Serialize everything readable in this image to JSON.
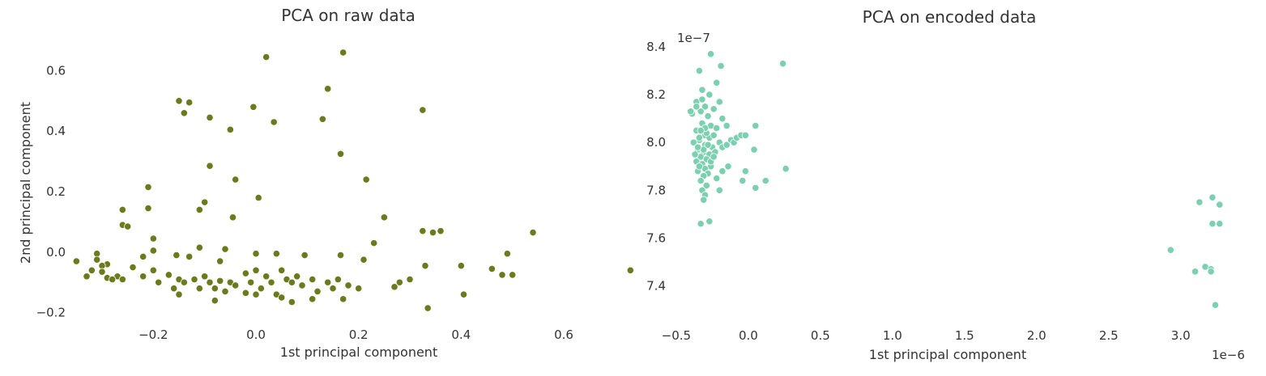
{
  "chart_data": [
    {
      "type": "scatter",
      "title": "PCA on raw data",
      "xlabel": "1st principal component",
      "ylabel": "2nd principal component",
      "xlim": [
        -0.36,
        0.72
      ],
      "ylim": [
        -0.225,
        0.7
      ],
      "xticks": [
        -0.2,
        0.0,
        0.2,
        0.4,
        0.6
      ],
      "xtick_labels": [
        "−0.2",
        "0.0",
        "0.2",
        "0.4",
        "0.6"
      ],
      "yticks": [
        -0.2,
        0.0,
        0.2,
        0.4,
        0.6
      ],
      "ytick_labels": [
        "−0.2",
        "0.0",
        "0.2",
        "0.4",
        "0.6"
      ],
      "grid": false,
      "color": "#6b7a1c",
      "points": [
        [
          0.02,
          0.645
        ],
        [
          0.17,
          0.66
        ],
        [
          0.14,
          0.54
        ],
        [
          -0.15,
          0.5
        ],
        [
          -0.13,
          0.495
        ],
        [
          -0.14,
          0.46
        ],
        [
          -0.005,
          0.48
        ],
        [
          0.13,
          0.44
        ],
        [
          -0.09,
          0.445
        ],
        [
          0.035,
          0.43
        ],
        [
          -0.05,
          0.405
        ],
        [
          0.325,
          0.47
        ],
        [
          0.165,
          0.325
        ],
        [
          -0.09,
          0.285
        ],
        [
          -0.04,
          0.24
        ],
        [
          0.215,
          0.24
        ],
        [
          -0.21,
          0.215
        ],
        [
          -0.1,
          0.165
        ],
        [
          0.005,
          0.18
        ],
        [
          -0.26,
          0.14
        ],
        [
          -0.21,
          0.145
        ],
        [
          -0.11,
          0.14
        ],
        [
          -0.045,
          0.115
        ],
        [
          0.25,
          0.115
        ],
        [
          -0.26,
          0.09
        ],
        [
          -0.25,
          0.085
        ],
        [
          -0.2,
          0.045
        ],
        [
          0.23,
          0.03
        ],
        [
          0.325,
          0.07
        ],
        [
          0.36,
          0.07
        ],
        [
          0.345,
          0.065
        ],
        [
          0.54,
          0.065
        ],
        [
          -0.31,
          -0.005
        ],
        [
          -0.11,
          0.015
        ],
        [
          -0.06,
          0.01
        ],
        [
          -0.2,
          0.005
        ],
        [
          0.0,
          -0.005
        ],
        [
          -0.155,
          -0.01
        ],
        [
          -0.22,
          -0.015
        ],
        [
          0.04,
          -0.005
        ],
        [
          0.165,
          -0.01
        ],
        [
          0.49,
          -0.005
        ],
        [
          -0.13,
          -0.015
        ],
        [
          -0.07,
          -0.03
        ],
        [
          -0.31,
          -0.025
        ],
        [
          -0.29,
          -0.04
        ],
        [
          0.095,
          -0.01
        ],
        [
          0.21,
          -0.025
        ],
        [
          -0.35,
          -0.03
        ],
        [
          -0.33,
          -0.08
        ],
        [
          -0.32,
          -0.06
        ],
        [
          -0.3,
          -0.045
        ],
        [
          -0.3,
          -0.065
        ],
        [
          -0.29,
          -0.085
        ],
        [
          -0.27,
          -0.08
        ],
        [
          -0.26,
          -0.09
        ],
        [
          -0.24,
          -0.05
        ],
        [
          -0.22,
          -0.08
        ],
        [
          -0.2,
          -0.06
        ],
        [
          -0.19,
          -0.1
        ],
        [
          -0.17,
          -0.075
        ],
        [
          -0.16,
          -0.12
        ],
        [
          -0.15,
          -0.09
        ],
        [
          -0.14,
          -0.1
        ],
        [
          -0.12,
          -0.09
        ],
        [
          -0.11,
          -0.12
        ],
        [
          -0.1,
          -0.08
        ],
        [
          -0.09,
          -0.1
        ],
        [
          -0.08,
          -0.12
        ],
        [
          -0.07,
          -0.095
        ],
        [
          -0.06,
          -0.13
        ],
        [
          -0.05,
          -0.1
        ],
        [
          -0.04,
          -0.11
        ],
        [
          -0.02,
          -0.07
        ],
        [
          -0.01,
          -0.1
        ],
        [
          0.0,
          -0.06
        ],
        [
          0.01,
          -0.12
        ],
        [
          0.02,
          -0.08
        ],
        [
          0.03,
          -0.1
        ],
        [
          0.04,
          -0.14
        ],
        [
          0.05,
          -0.06
        ],
        [
          0.06,
          -0.09
        ],
        [
          0.07,
          -0.1
        ],
        [
          0.08,
          -0.08
        ],
        [
          0.09,
          -0.11
        ],
        [
          0.11,
          -0.09
        ],
        [
          0.12,
          -0.13
        ],
        [
          0.14,
          -0.1
        ],
        [
          0.15,
          -0.12
        ],
        [
          0.16,
          -0.09
        ],
        [
          0.18,
          -0.11
        ],
        [
          0.2,
          -0.12
        ],
        [
          0.27,
          -0.115
        ],
        [
          0.3,
          -0.09
        ],
        [
          0.33,
          -0.045
        ],
        [
          0.4,
          -0.045
        ],
        [
          0.46,
          -0.055
        ],
        [
          0.48,
          -0.075
        ],
        [
          0.5,
          -0.075
        ],
        [
          0.28,
          -0.1
        ],
        [
          0.335,
          -0.185
        ],
        [
          0.405,
          -0.14
        ],
        [
          0.73,
          -0.06
        ],
        [
          -0.08,
          -0.16
        ],
        [
          0.07,
          -0.165
        ],
        [
          0.17,
          -0.155
        ],
        [
          0.11,
          -0.155
        ],
        [
          -0.15,
          -0.14
        ],
        [
          -0.02,
          -0.135
        ],
        [
          0.0,
          -0.14
        ],
        [
          0.05,
          -0.15
        ],
        [
          -0.28,
          -0.09
        ]
      ]
    },
    {
      "type": "scatter",
      "title": "PCA on encoded data",
      "xlabel": "1st principal component",
      "ylabel": "",
      "x_offset_label": "1e−6",
      "y_offset_label": "1e−7",
      "xlim": [
        -0.55,
        3.35
      ],
      "ylim": [
        7.27,
        8.41
      ],
      "xticks": [
        -0.5,
        0.0,
        0.5,
        1.0,
        1.5,
        2.0,
        2.5,
        3.0
      ],
      "xtick_labels": [
        "−0.5",
        "0.0",
        "0.5",
        "1.0",
        "1.5",
        "2.0",
        "2.5",
        "3.0"
      ],
      "yticks": [
        7.4,
        7.6,
        7.8,
        8.0,
        8.2,
        8.4
      ],
      "ytick_labels": [
        "7.4",
        "7.6",
        "7.8",
        "8.0",
        "8.2",
        "8.4"
      ],
      "grid": false,
      "color": "#7ccfb0",
      "points": [
        [
          -0.26,
          8.37
        ],
        [
          0.24,
          8.33
        ],
        [
          -0.19,
          8.32
        ],
        [
          -0.34,
          8.3
        ],
        [
          -0.22,
          8.25
        ],
        [
          -0.32,
          8.22
        ],
        [
          -0.27,
          8.2
        ],
        [
          -0.36,
          8.17
        ],
        [
          -0.3,
          8.15
        ],
        [
          -0.2,
          8.17
        ],
        [
          -0.24,
          8.14
        ],
        [
          -0.33,
          8.13
        ],
        [
          -0.39,
          8.12
        ],
        [
          -0.28,
          8.11
        ],
        [
          -0.18,
          8.1
        ],
        [
          -0.32,
          8.08
        ],
        [
          -0.26,
          8.07
        ],
        [
          -0.22,
          8.06
        ],
        [
          -0.36,
          8.05
        ],
        [
          -0.15,
          8.07
        ],
        [
          0.05,
          8.07
        ],
        [
          -0.3,
          8.03
        ],
        [
          -0.27,
          8.02
        ],
        [
          -0.34,
          8.01
        ],
        [
          -0.38,
          8.0
        ],
        [
          -0.3,
          7.99
        ],
        [
          -0.25,
          7.98
        ],
        [
          -0.35,
          7.97
        ],
        [
          -0.31,
          7.96
        ],
        [
          -0.27,
          7.95
        ],
        [
          -0.33,
          7.94
        ],
        [
          -0.29,
          7.93
        ],
        [
          -0.36,
          7.92
        ],
        [
          -0.32,
          7.91
        ],
        [
          -0.26,
          7.9
        ],
        [
          -0.3,
          7.89
        ],
        [
          -0.35,
          7.88
        ],
        [
          -0.28,
          7.87
        ],
        [
          -0.31,
          7.86
        ],
        [
          -0.33,
          7.84
        ],
        [
          -0.29,
          7.82
        ],
        [
          -0.32,
          7.8
        ],
        [
          -0.3,
          7.78
        ],
        [
          -0.31,
          7.76
        ],
        [
          -0.33,
          7.66
        ],
        [
          -0.27,
          7.67
        ],
        [
          -0.2,
          8.0
        ],
        [
          -0.18,
          7.98
        ],
        [
          -0.15,
          7.99
        ],
        [
          -0.12,
          8.01
        ],
        [
          -0.1,
          8.0
        ],
        [
          -0.08,
          8.02
        ],
        [
          -0.05,
          8.03
        ],
        [
          -0.02,
          8.03
        ],
        [
          0.04,
          7.97
        ],
        [
          -0.14,
          7.9
        ],
        [
          -0.18,
          7.88
        ],
        [
          -0.2,
          7.8
        ],
        [
          -0.04,
          7.84
        ],
        [
          -0.02,
          7.88
        ],
        [
          0.05,
          7.81
        ],
        [
          0.12,
          7.84
        ],
        [
          0.26,
          7.89
        ],
        [
          -0.22,
          7.85
        ],
        [
          -0.24,
          8.03
        ],
        [
          -0.29,
          8.04
        ],
        [
          -0.34,
          8.02
        ],
        [
          -0.37,
          7.95
        ],
        [
          -0.31,
          7.97
        ],
        [
          -0.28,
          7.99
        ],
        [
          -0.23,
          7.96
        ],
        [
          -0.26,
          7.92
        ],
        [
          -0.34,
          7.9
        ],
        [
          -0.32,
          8.18
        ],
        [
          -0.36,
          8.15
        ],
        [
          -0.4,
          8.13
        ],
        [
          -0.3,
          8.06
        ],
        [
          -0.33,
          8.05
        ],
        [
          -0.35,
          7.98
        ],
        [
          -0.24,
          7.94
        ],
        [
          3.22,
          7.77
        ],
        [
          3.13,
          7.75
        ],
        [
          3.27,
          7.74
        ],
        [
          3.22,
          7.66
        ],
        [
          3.27,
          7.66
        ],
        [
          2.93,
          7.55
        ],
        [
          3.17,
          7.48
        ],
        [
          3.21,
          7.47
        ],
        [
          3.1,
          7.46
        ],
        [
          3.21,
          7.46
        ],
        [
          3.24,
          7.32
        ]
      ]
    }
  ]
}
